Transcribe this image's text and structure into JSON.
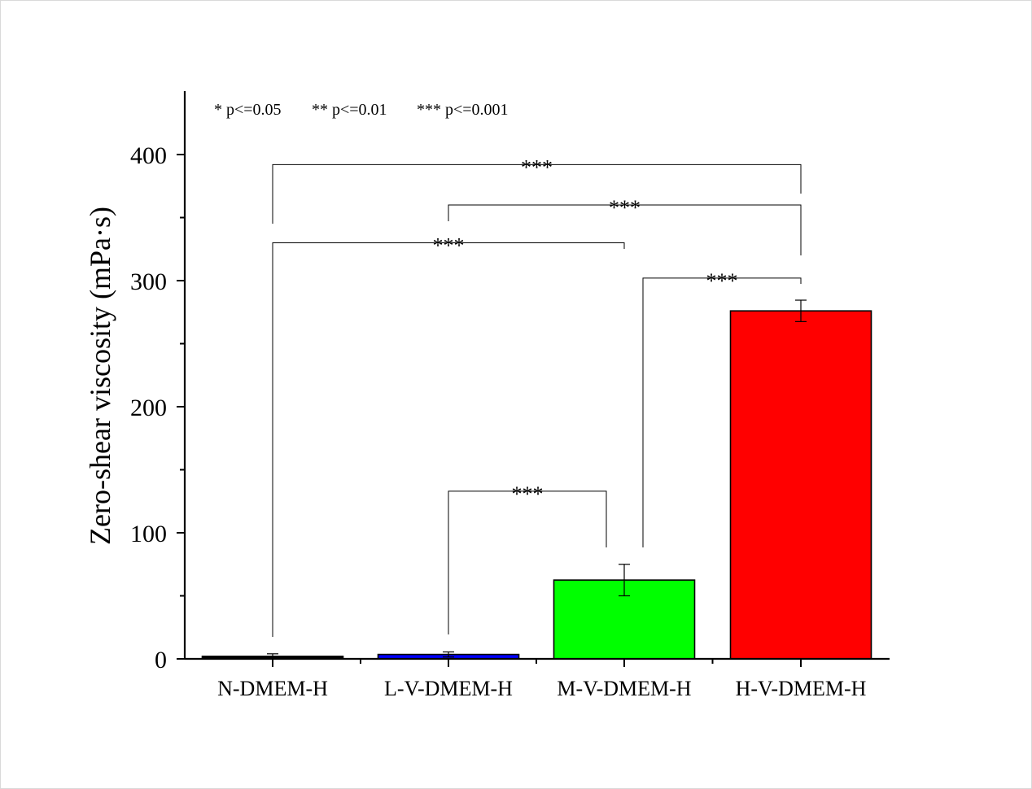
{
  "chart_data": {
    "type": "bar",
    "categories": [
      "N-DMEM-H",
      "L-V-DMEM-H",
      "M-V-DMEM-H",
      "H-V-DMEM-H"
    ],
    "values": [
      2,
      3.5,
      62.5,
      276
    ],
    "errors": [
      2,
      2,
      12.5,
      8.5
    ],
    "colors": [
      "#000000",
      "#0000ff",
      "#00ff00",
      "#ff0000"
    ],
    "title": "",
    "xlabel": "",
    "ylabel": "Zero-shear viscosity (mPa·s)",
    "ylim": [
      0,
      450
    ],
    "yticks": [
      0,
      100,
      200,
      300,
      400
    ],
    "grid": false,
    "legend_text": [
      "* p<=0.05",
      "** p<=0.01",
      "*** p<=0.001"
    ],
    "significance": [
      {
        "from": 0,
        "to": 3,
        "level": 392,
        "label": "***"
      },
      {
        "from": 1,
        "to": 3,
        "level": 360,
        "label": "***"
      },
      {
        "from": 0,
        "to": 2,
        "level": 330,
        "label": "***"
      },
      {
        "from": 2,
        "to": 3,
        "level": 302,
        "label": "***"
      },
      {
        "from": 1,
        "to": 2,
        "level": 133,
        "label": "***"
      }
    ]
  }
}
